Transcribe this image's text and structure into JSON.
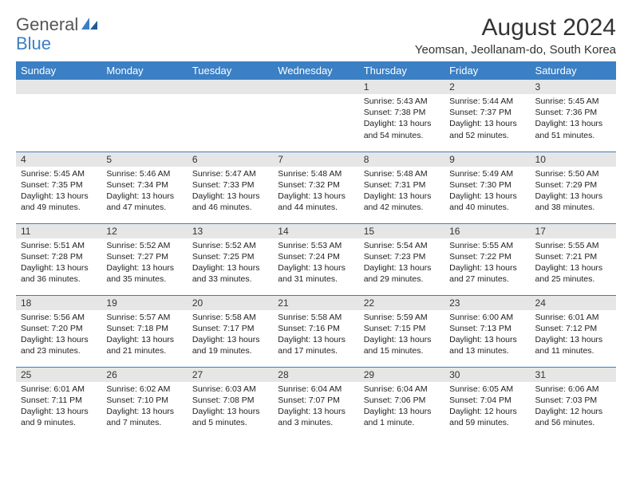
{
  "logo": {
    "text_general": "General",
    "text_blue": "Blue"
  },
  "title": "August 2024",
  "location": "Yeomsan, Jeollanam-do, South Korea",
  "colors": {
    "header_bg": "#3b7fc4",
    "header_text": "#ffffff",
    "daynum_bg": "#e6e6e6",
    "row_divider": "#3b7fc4",
    "body_text": "#222222",
    "page_bg": "#ffffff",
    "logo_gray": "#555555",
    "logo_blue": "#3b7fc4"
  },
  "typography": {
    "title_fontsize": 30,
    "location_fontsize": 15,
    "dayheader_fontsize": 13,
    "daynum_fontsize": 12,
    "content_fontsize": 10.5
  },
  "day_headers": [
    "Sunday",
    "Monday",
    "Tuesday",
    "Wednesday",
    "Thursday",
    "Friday",
    "Saturday"
  ],
  "weeks": [
    [
      {
        "num": "",
        "lines": []
      },
      {
        "num": "",
        "lines": []
      },
      {
        "num": "",
        "lines": []
      },
      {
        "num": "",
        "lines": []
      },
      {
        "num": "1",
        "lines": [
          "Sunrise: 5:43 AM",
          "Sunset: 7:38 PM",
          "Daylight: 13 hours and 54 minutes."
        ]
      },
      {
        "num": "2",
        "lines": [
          "Sunrise: 5:44 AM",
          "Sunset: 7:37 PM",
          "Daylight: 13 hours and 52 minutes."
        ]
      },
      {
        "num": "3",
        "lines": [
          "Sunrise: 5:45 AM",
          "Sunset: 7:36 PM",
          "Daylight: 13 hours and 51 minutes."
        ]
      }
    ],
    [
      {
        "num": "4",
        "lines": [
          "Sunrise: 5:45 AM",
          "Sunset: 7:35 PM",
          "Daylight: 13 hours and 49 minutes."
        ]
      },
      {
        "num": "5",
        "lines": [
          "Sunrise: 5:46 AM",
          "Sunset: 7:34 PM",
          "Daylight: 13 hours and 47 minutes."
        ]
      },
      {
        "num": "6",
        "lines": [
          "Sunrise: 5:47 AM",
          "Sunset: 7:33 PM",
          "Daylight: 13 hours and 46 minutes."
        ]
      },
      {
        "num": "7",
        "lines": [
          "Sunrise: 5:48 AM",
          "Sunset: 7:32 PM",
          "Daylight: 13 hours and 44 minutes."
        ]
      },
      {
        "num": "8",
        "lines": [
          "Sunrise: 5:48 AM",
          "Sunset: 7:31 PM",
          "Daylight: 13 hours and 42 minutes."
        ]
      },
      {
        "num": "9",
        "lines": [
          "Sunrise: 5:49 AM",
          "Sunset: 7:30 PM",
          "Daylight: 13 hours and 40 minutes."
        ]
      },
      {
        "num": "10",
        "lines": [
          "Sunrise: 5:50 AM",
          "Sunset: 7:29 PM",
          "Daylight: 13 hours and 38 minutes."
        ]
      }
    ],
    [
      {
        "num": "11",
        "lines": [
          "Sunrise: 5:51 AM",
          "Sunset: 7:28 PM",
          "Daylight: 13 hours and 36 minutes."
        ]
      },
      {
        "num": "12",
        "lines": [
          "Sunrise: 5:52 AM",
          "Sunset: 7:27 PM",
          "Daylight: 13 hours and 35 minutes."
        ]
      },
      {
        "num": "13",
        "lines": [
          "Sunrise: 5:52 AM",
          "Sunset: 7:25 PM",
          "Daylight: 13 hours and 33 minutes."
        ]
      },
      {
        "num": "14",
        "lines": [
          "Sunrise: 5:53 AM",
          "Sunset: 7:24 PM",
          "Daylight: 13 hours and 31 minutes."
        ]
      },
      {
        "num": "15",
        "lines": [
          "Sunrise: 5:54 AM",
          "Sunset: 7:23 PM",
          "Daylight: 13 hours and 29 minutes."
        ]
      },
      {
        "num": "16",
        "lines": [
          "Sunrise: 5:55 AM",
          "Sunset: 7:22 PM",
          "Daylight: 13 hours and 27 minutes."
        ]
      },
      {
        "num": "17",
        "lines": [
          "Sunrise: 5:55 AM",
          "Sunset: 7:21 PM",
          "Daylight: 13 hours and 25 minutes."
        ]
      }
    ],
    [
      {
        "num": "18",
        "lines": [
          "Sunrise: 5:56 AM",
          "Sunset: 7:20 PM",
          "Daylight: 13 hours and 23 minutes."
        ]
      },
      {
        "num": "19",
        "lines": [
          "Sunrise: 5:57 AM",
          "Sunset: 7:18 PM",
          "Daylight: 13 hours and 21 minutes."
        ]
      },
      {
        "num": "20",
        "lines": [
          "Sunrise: 5:58 AM",
          "Sunset: 7:17 PM",
          "Daylight: 13 hours and 19 minutes."
        ]
      },
      {
        "num": "21",
        "lines": [
          "Sunrise: 5:58 AM",
          "Sunset: 7:16 PM",
          "Daylight: 13 hours and 17 minutes."
        ]
      },
      {
        "num": "22",
        "lines": [
          "Sunrise: 5:59 AM",
          "Sunset: 7:15 PM",
          "Daylight: 13 hours and 15 minutes."
        ]
      },
      {
        "num": "23",
        "lines": [
          "Sunrise: 6:00 AM",
          "Sunset: 7:13 PM",
          "Daylight: 13 hours and 13 minutes."
        ]
      },
      {
        "num": "24",
        "lines": [
          "Sunrise: 6:01 AM",
          "Sunset: 7:12 PM",
          "Daylight: 13 hours and 11 minutes."
        ]
      }
    ],
    [
      {
        "num": "25",
        "lines": [
          "Sunrise: 6:01 AM",
          "Sunset: 7:11 PM",
          "Daylight: 13 hours and 9 minutes."
        ]
      },
      {
        "num": "26",
        "lines": [
          "Sunrise: 6:02 AM",
          "Sunset: 7:10 PM",
          "Daylight: 13 hours and 7 minutes."
        ]
      },
      {
        "num": "27",
        "lines": [
          "Sunrise: 6:03 AM",
          "Sunset: 7:08 PM",
          "Daylight: 13 hours and 5 minutes."
        ]
      },
      {
        "num": "28",
        "lines": [
          "Sunrise: 6:04 AM",
          "Sunset: 7:07 PM",
          "Daylight: 13 hours and 3 minutes."
        ]
      },
      {
        "num": "29",
        "lines": [
          "Sunrise: 6:04 AM",
          "Sunset: 7:06 PM",
          "Daylight: 13 hours and 1 minute."
        ]
      },
      {
        "num": "30",
        "lines": [
          "Sunrise: 6:05 AM",
          "Sunset: 7:04 PM",
          "Daylight: 12 hours and 59 minutes."
        ]
      },
      {
        "num": "31",
        "lines": [
          "Sunrise: 6:06 AM",
          "Sunset: 7:03 PM",
          "Daylight: 12 hours and 56 minutes."
        ]
      }
    ]
  ]
}
